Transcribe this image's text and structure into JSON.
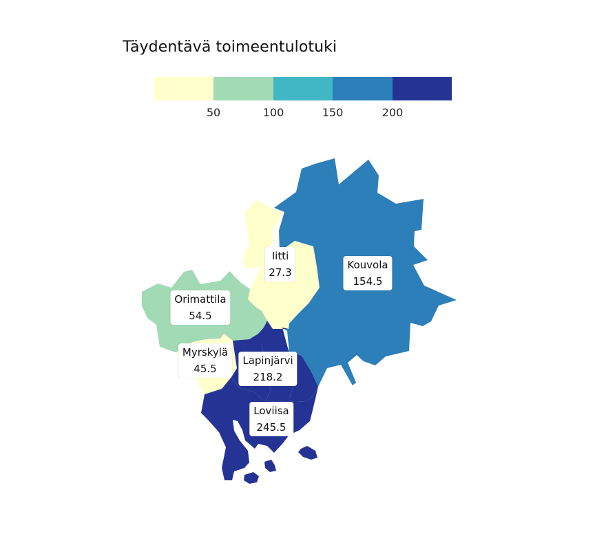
{
  "legend": {
    "title": "Täydentävä toimeentulotuki",
    "colors": [
      "#ffffcc",
      "#a1dab4",
      "#41b6c4",
      "#2c7fb8",
      "#253494"
    ],
    "ticks": [
      "50",
      "100",
      "150",
      "200"
    ]
  },
  "municipalities": [
    {
      "id": "kouvola",
      "name": "Kouvola",
      "value": "154.5",
      "color": "#2c7fb8"
    },
    {
      "id": "iitti",
      "name": "Iitti",
      "value": "27.3",
      "color": "#ffffcc"
    },
    {
      "id": "orimattila",
      "name": "Orimattila",
      "value": "54.5",
      "color": "#a1dab4"
    },
    {
      "id": "myrskyla",
      "name": "Myrskylä",
      "value": "45.5",
      "color": "#ffffcc"
    },
    {
      "id": "lapinjarvi",
      "name": "Lapinjärvi",
      "value": "218.2",
      "color": "#253494"
    },
    {
      "id": "loviisa",
      "name": "Loviisa",
      "value": "245.5",
      "color": "#253494"
    }
  ]
}
